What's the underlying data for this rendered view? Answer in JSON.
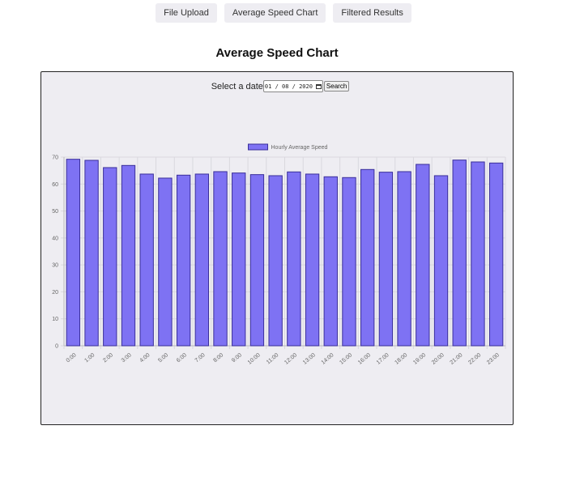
{
  "nav": {
    "items": [
      {
        "label": "File Upload"
      },
      {
        "label": "Average Speed Chart"
      },
      {
        "label": "Filtered Results"
      }
    ]
  },
  "page": {
    "title": "Average Speed Chart"
  },
  "filter": {
    "label": "Select a date",
    "date_value": "01 / 08 / 2020",
    "search_label": "Search"
  },
  "colors": {
    "bar_fill": "#7e72f3",
    "bar_border": "#3a2f9a",
    "panel_bg": "#eeedf2",
    "grid": "#d9d8de"
  },
  "chart_data": {
    "type": "bar",
    "categories": [
      "0:00",
      "1:00",
      "2:00",
      "3:00",
      "4:00",
      "5:00",
      "6:00",
      "7:00",
      "8:00",
      "9:00",
      "10:00",
      "11:00",
      "12:00",
      "13:00",
      "14:00",
      "15:00",
      "16:00",
      "17:00",
      "18:00",
      "19:00",
      "20:00",
      "21:00",
      "22:00",
      "23:00"
    ],
    "series": [
      {
        "name": "Hourly Average Speed",
        "values": [
          69.2,
          68.8,
          66.1,
          66.9,
          63.7,
          62.2,
          63.3,
          63.7,
          64.6,
          64.1,
          63.5,
          63.1,
          64.5,
          63.7,
          62.7,
          62.4,
          65.4,
          64.4,
          64.6,
          67.3,
          63.1,
          68.9,
          68.2,
          67.8
        ]
      }
    ],
    "ylim": [
      0,
      70
    ],
    "yticks": [
      0,
      10,
      20,
      30,
      40,
      50,
      60,
      70
    ],
    "legend": "top",
    "grid": true,
    "title": "",
    "xlabel": "",
    "ylabel": ""
  }
}
